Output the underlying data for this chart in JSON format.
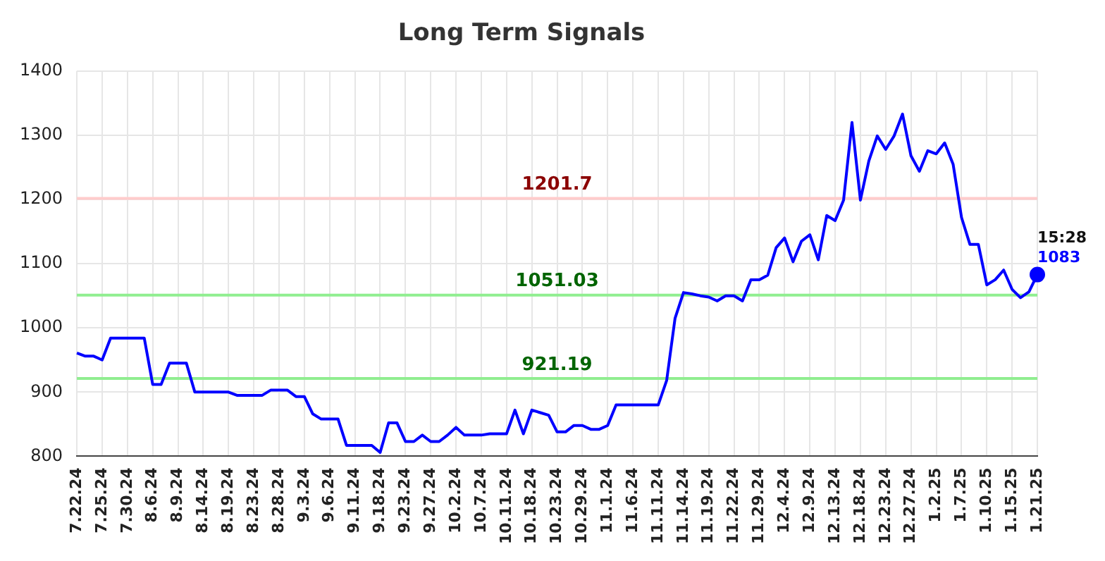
{
  "chart_data": {
    "type": "line",
    "title": "Long Term Signals",
    "categories": [
      "7.22.24",
      null,
      null,
      "7.25.24",
      null,
      null,
      "7.30.24",
      null,
      null,
      "8.6.24",
      null,
      null,
      "8.9.24",
      null,
      null,
      "8.14.24",
      null,
      null,
      "8.19.24",
      null,
      null,
      "8.23.24",
      null,
      null,
      "8.28.24",
      null,
      null,
      "9.3.24",
      null,
      null,
      "9.6.24",
      null,
      null,
      "9.11.24",
      null,
      null,
      "9.18.24",
      null,
      null,
      "9.23.24",
      null,
      null,
      "9.27.24",
      null,
      null,
      "10.2.24",
      null,
      null,
      "10.7.24",
      null,
      null,
      "10.11.24",
      null,
      null,
      "10.18.24",
      null,
      null,
      "10.23.24",
      null,
      null,
      "10.29.24",
      null,
      null,
      "11.1.24",
      null,
      null,
      "11.6.24",
      null,
      null,
      "11.11.24",
      null,
      null,
      "11.14.24",
      null,
      null,
      "11.19.24",
      null,
      null,
      "11.22.24",
      null,
      null,
      "11.29.24",
      null,
      null,
      "12.4.24",
      null,
      null,
      "12.9.24",
      null,
      null,
      "12.13.24",
      null,
      null,
      "12.18.24",
      null,
      null,
      "12.23.24",
      null,
      null,
      "12.27.24",
      null,
      null,
      "1.2.25",
      null,
      null,
      "1.7.25",
      null,
      null,
      "1.10.25",
      null,
      null,
      "1.15.25",
      null,
      null,
      "1.21.25"
    ],
    "series": [
      {
        "color": "#0000ff",
        "values": [
          961,
          956,
          956,
          950,
          984,
          984,
          984,
          984,
          984,
          912,
          912,
          945,
          945,
          945,
          900,
          900,
          900,
          900,
          900,
          895,
          895,
          895,
          895,
          903,
          903,
          903,
          893,
          893,
          866,
          858,
          858,
          858,
          817,
          817,
          817,
          817,
          806,
          852,
          852,
          823,
          823,
          833,
          823,
          823,
          833,
          845,
          833,
          833,
          833,
          835,
          835,
          835,
          872,
          835,
          872,
          868,
          864,
          838,
          838,
          848,
          848,
          842,
          842,
          848,
          880,
          880,
          880,
          880,
          880,
          880,
          918,
          1015,
          1055,
          1053,
          1050,
          1048,
          1042,
          1050,
          1050,
          1042,
          1075,
          1075,
          1082,
          1125,
          1140,
          1103,
          1135,
          1145,
          1106,
          1175,
          1167,
          1199,
          1320,
          1199,
          1260,
          1299,
          1278,
          1299,
          1333,
          1268,
          1244,
          1276,
          1271,
          1288,
          1255,
          1172,
          1130,
          1130,
          1067,
          1075,
          1090,
          1060,
          1047,
          1056,
          1083
        ],
        "value_labels": [
          null,
          null,
          null,
          null,
          null,
          null,
          null,
          null,
          null,
          null,
          null,
          null,
          null,
          null,
          null,
          null,
          null,
          null,
          null,
          null,
          null,
          null,
          null,
          null,
          null,
          null,
          null,
          null,
          null,
          null,
          null,
          null,
          null,
          null,
          null,
          null,
          null,
          null,
          null,
          null,
          null,
          null,
          null,
          null,
          null,
          null,
          null,
          null,
          null,
          null,
          null,
          null,
          null,
          null,
          null,
          null,
          null,
          null,
          null,
          null,
          null,
          null,
          null,
          null,
          null,
          null,
          null,
          null,
          null,
          null,
          null,
          null,
          null,
          null,
          null,
          null,
          null,
          null,
          null,
          null,
          null,
          null,
          null,
          null,
          null,
          null,
          null,
          null,
          null,
          null,
          null,
          null,
          null,
          null,
          null,
          null,
          null,
          null,
          null,
          null,
          null,
          null,
          null,
          null,
          null,
          null,
          null,
          null,
          null,
          null,
          null,
          null,
          null,
          null,
          "1083"
        ]
      }
    ],
    "ylim": [
      800,
      1400
    ],
    "yticks": [
      800,
      900,
      1000,
      1100,
      1200,
      1300,
      1400
    ],
    "grid": true,
    "legend": false,
    "marker": "none",
    "line_style": "solid",
    "ref_lines": [
      {
        "axis": "y",
        "value": 1201.7,
        "label": "1201.7",
        "color": "#ffcccc"
      },
      {
        "axis": "y",
        "value": 1051.03,
        "label": "1051.03",
        "color": "#90ee90"
      },
      {
        "axis": "y",
        "value": 921.19,
        "label": "921.19",
        "color": "#90ee90"
      }
    ],
    "annotations": [
      "15:28"
    ]
  }
}
